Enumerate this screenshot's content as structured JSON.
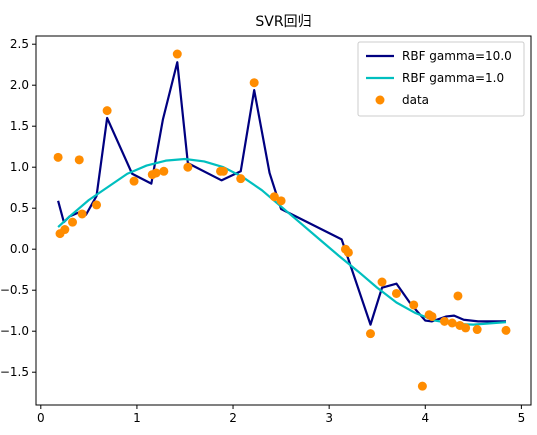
{
  "chart_data": {
    "type": "line",
    "title": "SVR回归",
    "xlabel": "",
    "ylabel": "",
    "xlim": [
      -0.05,
      5.1
    ],
    "ylim": [
      -1.9,
      2.6
    ],
    "xticks": [
      0,
      1,
      2,
      3,
      4,
      5
    ],
    "yticks": [
      -1.5,
      -1.0,
      -0.5,
      0.0,
      0.5,
      1.0,
      1.5,
      2.0,
      2.5
    ],
    "xtick_labels": [
      "0",
      "1",
      "2",
      "3",
      "4",
      "5"
    ],
    "ytick_labels": [
      "−1.5",
      "−1.0",
      "−0.5",
      "0.0",
      "0.5",
      "1.0",
      "1.5",
      "2.0",
      "2.5"
    ],
    "grid": false,
    "legend_position": "top-right",
    "series": [
      {
        "name": "RBF gamma=10.0",
        "kind": "line",
        "color": "#000080",
        "x": [
          0.18,
          0.24,
          0.3,
          0.4,
          0.47,
          0.58,
          0.69,
          0.95,
          1.15,
          1.27,
          1.42,
          1.53,
          1.88,
          2.08,
          2.22,
          2.38,
          2.5,
          3.13,
          3.43,
          3.55,
          3.7,
          3.85,
          4.0,
          4.07,
          4.22,
          4.3,
          4.4,
          4.55,
          4.84
        ],
        "y": [
          0.59,
          0.33,
          0.4,
          0.45,
          0.42,
          0.65,
          1.6,
          0.92,
          0.8,
          1.58,
          2.28,
          1.05,
          0.84,
          0.95,
          1.94,
          0.93,
          0.49,
          0.12,
          -0.92,
          -0.47,
          -0.42,
          -0.67,
          -0.87,
          -0.88,
          -0.82,
          -0.81,
          -0.86,
          -0.88,
          -0.88
        ]
      },
      {
        "name": "RBF gamma=1.0",
        "kind": "line",
        "color": "#00bfbf",
        "x": [
          0.18,
          0.3,
          0.5,
          0.7,
          0.9,
          1.1,
          1.3,
          1.5,
          1.7,
          1.9,
          2.1,
          2.3,
          2.5,
          2.7,
          2.9,
          3.1,
          3.3,
          3.5,
          3.7,
          3.9,
          4.1,
          4.3,
          4.5,
          4.84
        ],
        "y": [
          0.27,
          0.4,
          0.6,
          0.76,
          0.92,
          1.02,
          1.08,
          1.1,
          1.07,
          1.0,
          0.88,
          0.72,
          0.52,
          0.32,
          0.12,
          -0.08,
          -0.27,
          -0.47,
          -0.65,
          -0.78,
          -0.87,
          -0.91,
          -0.92,
          -0.89
        ]
      },
      {
        "name": "data",
        "kind": "scatter",
        "color": "#ff8c00",
        "x": [
          0.18,
          0.2,
          0.25,
          0.33,
          0.4,
          0.43,
          0.58,
          0.69,
          0.97,
          1.16,
          1.2,
          1.28,
          1.42,
          1.53,
          1.87,
          1.9,
          2.08,
          2.22,
          2.43,
          2.5,
          3.17,
          3.2,
          3.43,
          3.55,
          3.7,
          3.88,
          3.97,
          4.04,
          4.07,
          4.2,
          4.28,
          4.34,
          4.36,
          4.42,
          4.54,
          4.84
        ],
        "y": [
          1.12,
          0.19,
          0.24,
          0.33,
          1.09,
          0.43,
          0.54,
          1.69,
          0.83,
          0.91,
          0.93,
          0.95,
          2.38,
          1.0,
          0.95,
          0.95,
          0.86,
          2.03,
          0.64,
          0.59,
          0.0,
          -0.04,
          -1.03,
          -0.4,
          -0.54,
          -0.68,
          -1.67,
          -0.8,
          -0.82,
          -0.88,
          -0.9,
          -0.57,
          -0.93,
          -0.96,
          -0.98,
          -0.99
        ]
      }
    ]
  }
}
